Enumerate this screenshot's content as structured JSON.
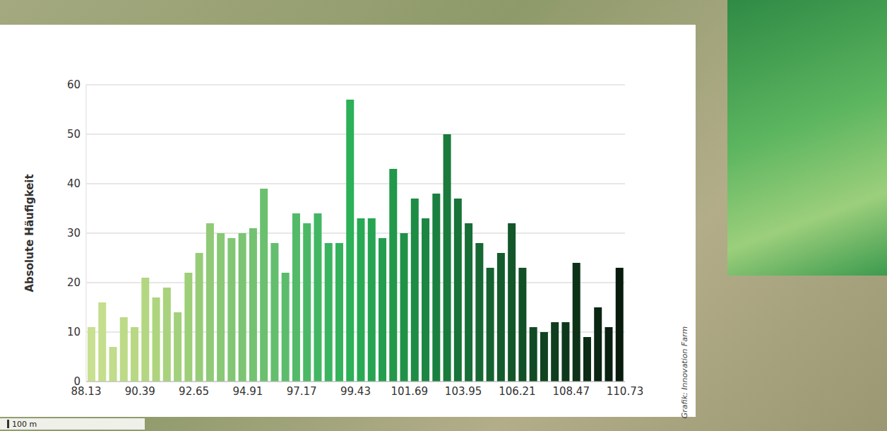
{
  "chart_data": {
    "type": "histogram",
    "y_label": "Absolute Häufigkeit",
    "bins": [
      88.13,
      88.582,
      89.034,
      89.486,
      89.938,
      90.39,
      90.842,
      91.294,
      91.746,
      92.198,
      92.65,
      93.102,
      93.554,
      94.006,
      94.458,
      94.91,
      95.362,
      95.814,
      96.266,
      96.718,
      97.17,
      97.622,
      98.074,
      98.526,
      98.978,
      99.43,
      99.882,
      100.334,
      100.786,
      101.238,
      101.69,
      102.142,
      102.594,
      103.046,
      103.498,
      103.95,
      104.402,
      104.854,
      105.306,
      105.758,
      106.21,
      106.662,
      107.114,
      107.566,
      108.018,
      108.47,
      108.922,
      109.374,
      109.826,
      110.278,
      110.73
    ],
    "values": [
      11,
      16,
      7,
      13,
      11,
      21,
      17,
      19,
      14,
      22,
      26,
      32,
      30,
      29,
      30,
      31,
      39,
      28,
      22,
      34,
      32,
      34,
      28,
      28,
      57,
      33,
      33,
      29,
      43,
      30,
      37,
      33,
      38,
      50,
      37,
      32,
      28,
      23,
      26,
      32,
      23,
      11,
      10,
      12,
      12,
      24,
      9,
      15,
      11,
      23
    ],
    "colors": [
      "#c9e090",
      "#c5de8d",
      "#c1dc8a",
      "#bdda87",
      "#b8d884",
      "#b3d681",
      "#aed47e",
      "#a9d27c",
      "#a3d07a",
      "#9dce78",
      "#97cc77",
      "#90ca76",
      "#89c875",
      "#82c674",
      "#7bc473",
      "#73c272",
      "#6bc070",
      "#63be6e",
      "#5bbc6c",
      "#53ba69",
      "#4bb866",
      "#43b663",
      "#3bb45f",
      "#33b25b",
      "#2cb058",
      "#28aa54",
      "#26a451",
      "#249e4e",
      "#22984b",
      "#209248",
      "#1e8c45",
      "#1c8642",
      "#1a803f",
      "#197a3c",
      "#187439",
      "#176e36",
      "#166833",
      "#156230",
      "#145c2d",
      "#13562a",
      "#125027",
      "#114a24",
      "#104421",
      "#0f3e1e",
      "#0e381b",
      "#0d3218",
      "#0c2c15",
      "#0b2612",
      "#0a2010",
      "#091b0d"
    ],
    "xlim": [
      88.13,
      110.73
    ],
    "xticks": [
      88.13,
      90.39,
      92.65,
      94.91,
      97.17,
      99.43,
      101.69,
      103.95,
      106.21,
      108.47,
      110.73
    ],
    "ylim": [
      0,
      60
    ],
    "yticks": [
      0,
      10,
      20,
      30,
      40,
      50,
      60
    ],
    "grid": true,
    "annotations": [
      "Grafik: Innovation Farm",
      "100 m"
    ]
  }
}
